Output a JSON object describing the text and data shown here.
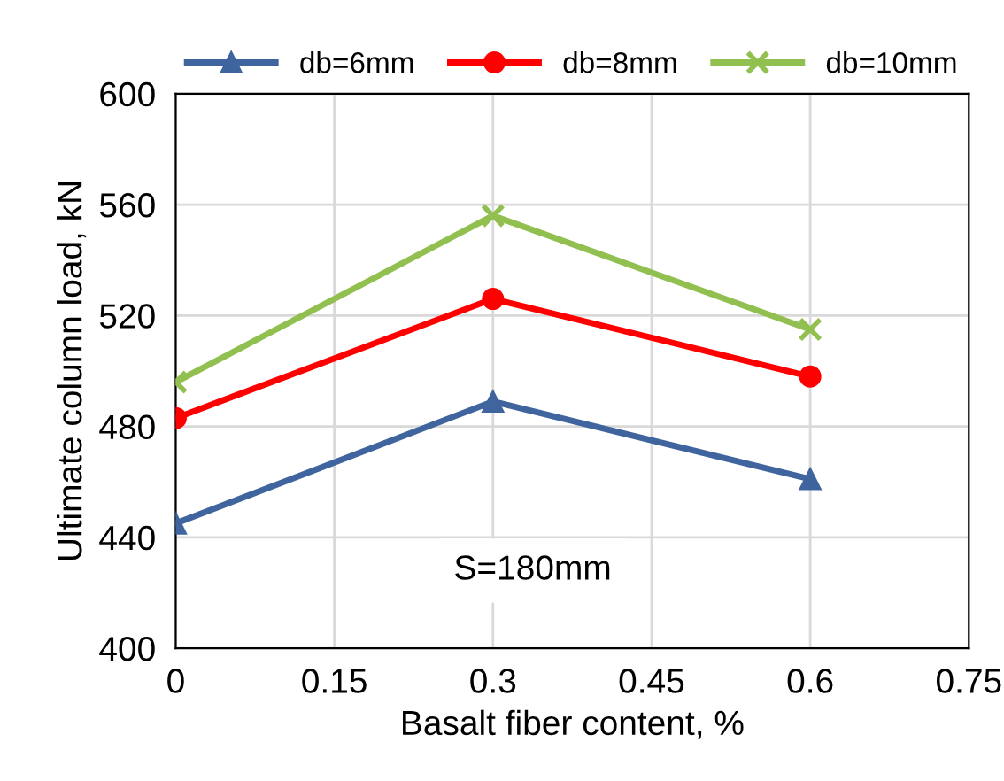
{
  "chart_data": {
    "type": "line",
    "xlabel": "Basalt fiber content, %",
    "ylabel": "Ultimate column load, kN",
    "x": [
      0,
      0.3,
      0.6
    ],
    "series": [
      {
        "name": "db=6mm",
        "color": "#3f649e",
        "marker": "triangle",
        "values": [
          445,
          489,
          461
        ]
      },
      {
        "name": "db=8mm",
        "color": "#ff0000",
        "marker": "circle",
        "values": [
          483,
          526,
          498
        ]
      },
      {
        "name": "db=10mm",
        "color": "#92c050",
        "marker": "cross",
        "values": [
          496,
          556,
          515
        ]
      }
    ],
    "xlim": [
      0,
      0.75
    ],
    "xticks": [
      0,
      0.15,
      0.3,
      0.45,
      0.6,
      0.75
    ],
    "ylim": [
      400,
      600
    ],
    "yticks": [
      400,
      440,
      480,
      520,
      560,
      600
    ],
    "grid": true,
    "legend": "top",
    "line_style": "solid",
    "annotations": [
      "S=180mm"
    ]
  }
}
